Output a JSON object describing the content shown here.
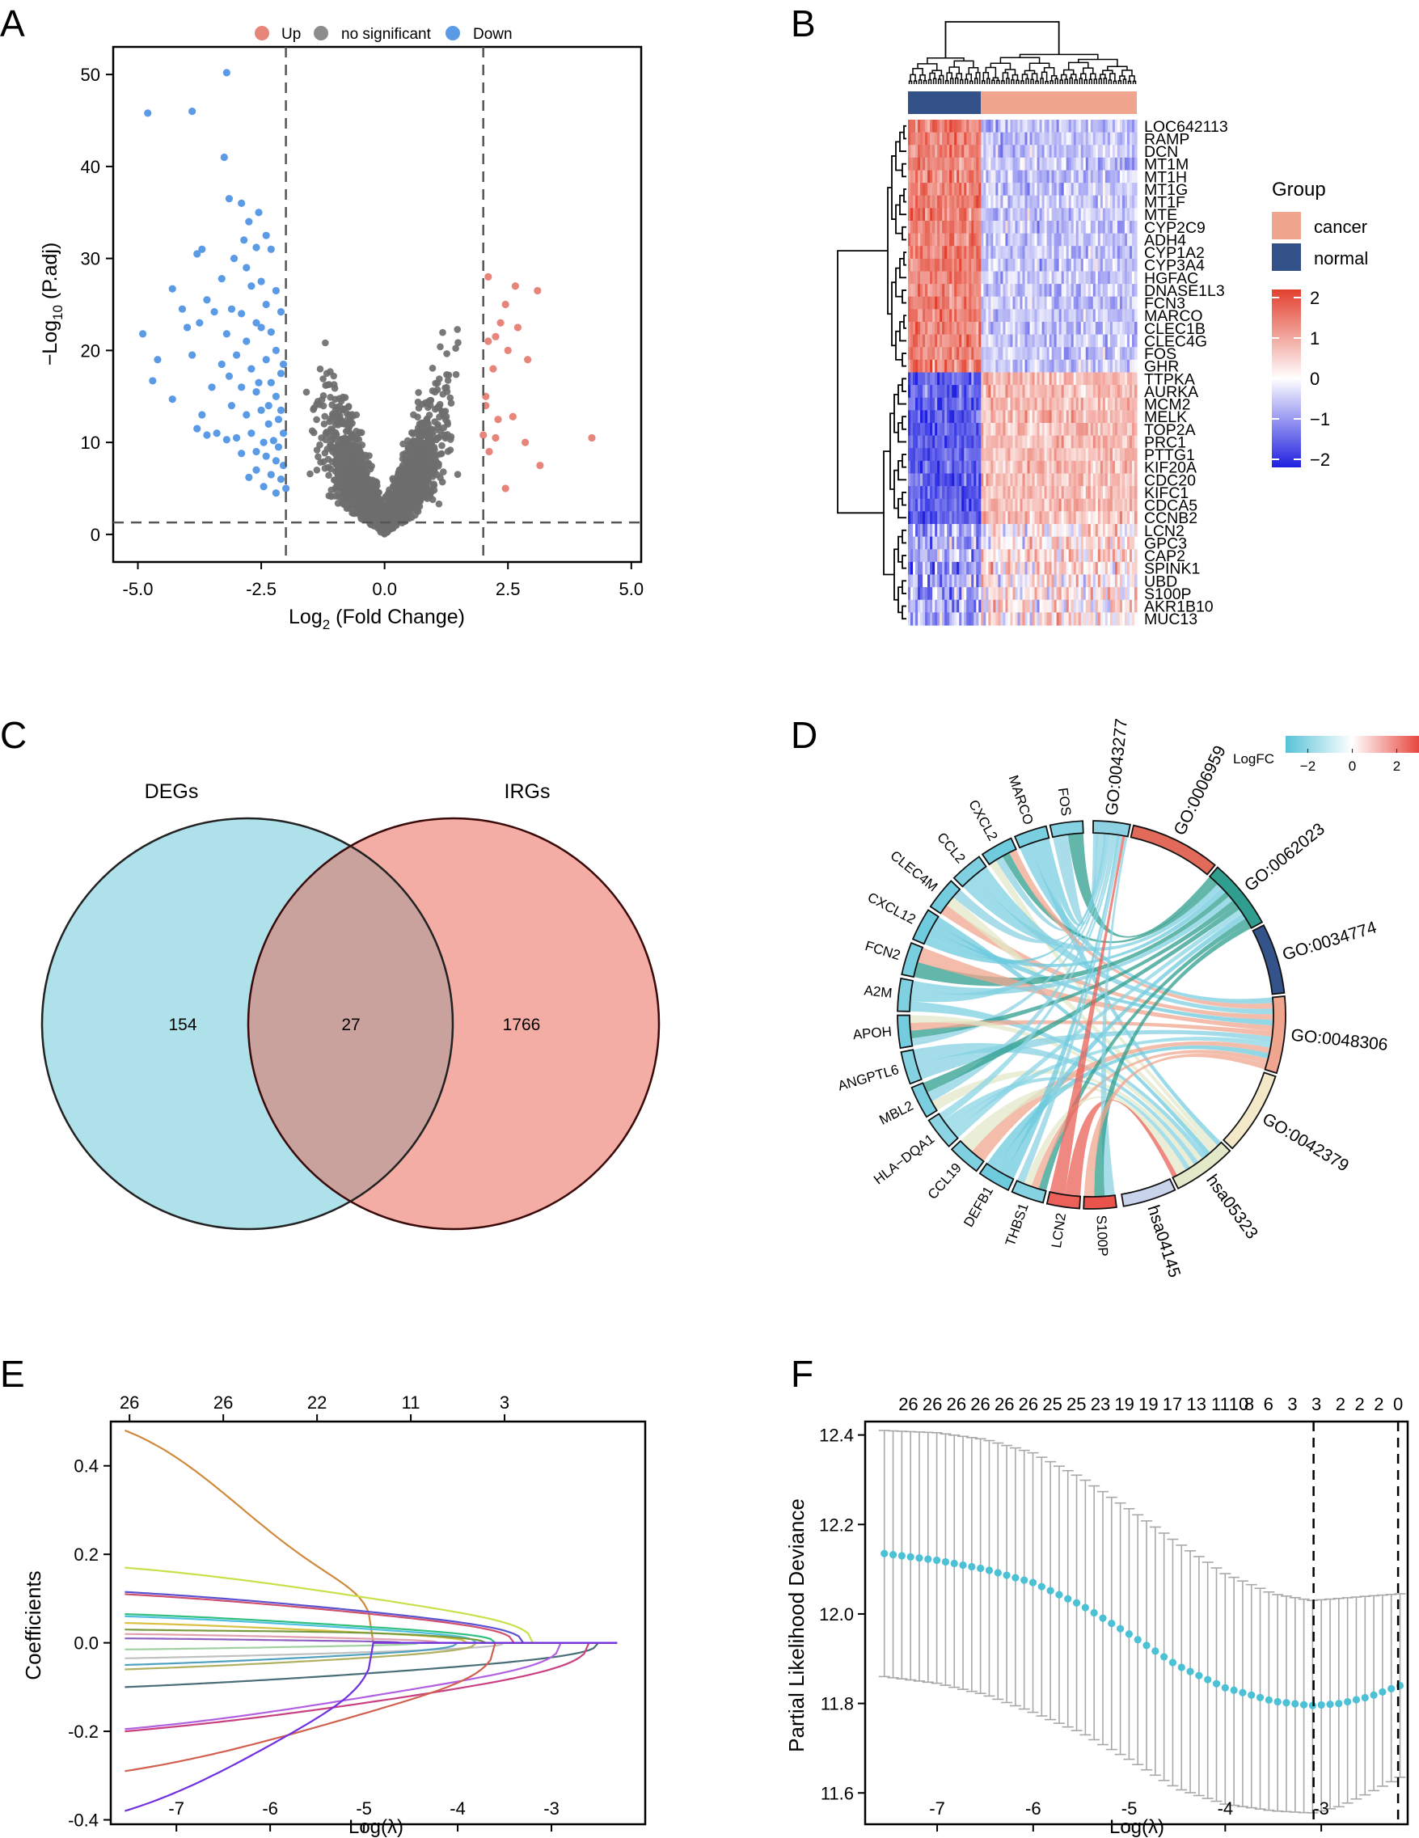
{
  "panel_letters": [
    "A",
    "B",
    "C",
    "D",
    "E",
    "F"
  ],
  "colors": {
    "up": "#e8857b",
    "nonsig": "#8c8c8c",
    "nonsig_dark": "#6e6e6e",
    "down": "#5b9be6",
    "cancer": "#f0a58e",
    "normal": "#34528a",
    "heat_high": "#e2402e",
    "heat_mid": "#ffffff",
    "heat_low": "#2020e0",
    "venn_left": "#aee1ea",
    "venn_right": "#f4ada4",
    "venn_overlap": "#c9a19d",
    "chord_low": "#58c2d8",
    "chord_high": "#e8473e",
    "lasso_cv": "#4cc0d4"
  },
  "chart_data": [
    {
      "panel": "A",
      "type": "scatter",
      "title": "",
      "legend": [
        "Up",
        "no significant",
        "Down"
      ],
      "legend_position": "top",
      "xlabel_parts": [
        "Log",
        "2",
        " (Fold Change)"
      ],
      "ylabel_parts": [
        "−Log",
        "10",
        " (P.adj)"
      ],
      "xlim": [
        -5.5,
        5.2
      ],
      "ylim": [
        -3,
        53
      ],
      "xticks": [
        "-5.0",
        "-2.5",
        "0.0",
        "2.5",
        "5.0"
      ],
      "xtick_values": [
        -5,
        -2.5,
        0,
        2.5,
        5
      ],
      "yticks": [
        "0",
        "10",
        "20",
        "30",
        "40",
        "50"
      ],
      "ytick_values": [
        0,
        10,
        20,
        30,
        40,
        50
      ],
      "thresholds": {
        "logfc": 2,
        "neglog_padj": 1.3
      },
      "up_points": [
        [
          2.1,
          28
        ],
        [
          2.45,
          25
        ],
        [
          2.65,
          27
        ],
        [
          2.35,
          23
        ],
        [
          2.5,
          20
        ],
        [
          2.7,
          22.5
        ],
        [
          3.1,
          26.5
        ],
        [
          2.9,
          19
        ],
        [
          2.1,
          21
        ],
        [
          2.2,
          18
        ],
        [
          2.05,
          15
        ],
        [
          2.05,
          14
        ],
        [
          2.3,
          12.5
        ],
        [
          2.25,
          10.5
        ],
        [
          2.85,
          10
        ],
        [
          3.15,
          7.5
        ],
        [
          4.2,
          10.5
        ],
        [
          2.45,
          5
        ],
        [
          2.12,
          9
        ],
        [
          2.0,
          10.8
        ],
        [
          2.25,
          21.5
        ],
        [
          2.6,
          12.8
        ]
      ],
      "down_points": [
        [
          -3.2,
          50.2
        ],
        [
          -4.8,
          45.8
        ],
        [
          -3.9,
          46
        ],
        [
          -3.25,
          41
        ],
        [
          -3.15,
          36.5
        ],
        [
          -2.9,
          36
        ],
        [
          -2.55,
          35
        ],
        [
          -2.75,
          34
        ],
        [
          -2.85,
          32
        ],
        [
          -2.4,
          32.5
        ],
        [
          -3.7,
          31
        ],
        [
          -3.8,
          30.5
        ],
        [
          -2.6,
          31.2
        ],
        [
          -2.8,
          29
        ],
        [
          -3.05,
          30
        ],
        [
          -2.3,
          31
        ],
        [
          -2.7,
          27
        ],
        [
          -3.3,
          27.8
        ],
        [
          -2.5,
          27.5
        ],
        [
          -2.2,
          26.5
        ],
        [
          -4.3,
          26.7
        ],
        [
          -3.6,
          25.5
        ],
        [
          -3.1,
          24.5
        ],
        [
          -2.9,
          24
        ],
        [
          -2.4,
          25
        ],
        [
          -2.1,
          24.2
        ],
        [
          -4.1,
          24.5
        ],
        [
          -3.45,
          24.2
        ],
        [
          -3.75,
          23
        ],
        [
          -2.6,
          23
        ],
        [
          -2.3,
          22
        ],
        [
          -4.0,
          22.5
        ],
        [
          -3.2,
          21.8
        ],
        [
          -2.8,
          21
        ],
        [
          -2.5,
          22.5
        ],
        [
          -2.2,
          20
        ],
        [
          -4.9,
          21.8
        ],
        [
          -4.6,
          19
        ],
        [
          -3.9,
          19.5
        ],
        [
          -3.3,
          18.5
        ],
        [
          -3.0,
          19.5
        ],
        [
          -2.7,
          18
        ],
        [
          -2.4,
          19
        ],
        [
          -2.1,
          17.5
        ],
        [
          -2.3,
          16.5
        ],
        [
          -3.5,
          16
        ],
        [
          -2.9,
          16
        ],
        [
          -2.6,
          15.5
        ],
        [
          -2.2,
          15
        ],
        [
          -4.7,
          16.7
        ],
        [
          -4.3,
          14.7
        ],
        [
          -3.7,
          13
        ],
        [
          -3.1,
          14
        ],
        [
          -2.8,
          13
        ],
        [
          -2.5,
          13.5
        ],
        [
          -2.35,
          12
        ],
        [
          -2.15,
          12.5
        ],
        [
          -3.4,
          11
        ],
        [
          -3.0,
          10.5
        ],
        [
          -2.7,
          11
        ],
        [
          -2.45,
          10
        ],
        [
          -2.25,
          10.2
        ],
        [
          -2.05,
          11
        ],
        [
          -3.6,
          10.8
        ],
        [
          -3.2,
          10.3
        ],
        [
          -2.6,
          9
        ],
        [
          -2.4,
          8.5
        ],
        [
          -2.2,
          8
        ],
        [
          -2.05,
          7.5
        ],
        [
          -3.8,
          11.5
        ],
        [
          -2.9,
          8.8
        ],
        [
          -2.6,
          7
        ],
        [
          -2.3,
          6.5
        ],
        [
          -2.1,
          6
        ],
        [
          -2.0,
          5
        ],
        [
          -2.2,
          4.5
        ],
        [
          -2.45,
          5.2
        ],
        [
          -2.75,
          6.2
        ],
        [
          -2.1,
          13.5
        ],
        [
          -2.55,
          16.5
        ],
        [
          -3.15,
          17.2
        ],
        [
          -2.05,
          18.5
        ],
        [
          -2.35,
          14
        ],
        [
          -2.15,
          9.5
        ]
      ]
    },
    {
      "panel": "B",
      "type": "heatmap",
      "genes": [
        "LOC642113",
        "RAMP",
        "DCN",
        "MT1M",
        "MT1H",
        "MT1G",
        "MT1F",
        "MTE",
        "CYP2C9",
        "ADH4",
        "CYP1A2",
        "CYP3A4",
        "HGFAC",
        "DNASE1L3",
        "FCN3",
        "MARCO",
        "CLEC1B",
        "CLEC4G",
        "FOS",
        "GHR",
        "TTPKA",
        "AURKA",
        "MCM2",
        "MELK",
        "TOP2A",
        "PRC1",
        "PTTG1",
        "KIF20A",
        "CDC20",
        "KIFC1",
        "CDCA5",
        "CCNB2",
        "LCN2",
        "GPC3",
        "CAP2",
        "SPINK1",
        "UBD",
        "S100P",
        "AKR1B10",
        "MUC13"
      ],
      "legend_title": "Group",
      "groups": [
        "cancer",
        "normal"
      ],
      "colorbar_ticks": [
        "2",
        "1",
        "0",
        "−1",
        "−2"
      ],
      "colorbar_values": [
        2,
        1,
        0,
        -1,
        -2
      ]
    },
    {
      "panel": "C",
      "type": "venn",
      "sets": [
        "DEGs",
        "IRGs"
      ],
      "counts": {
        "left_only": "154",
        "overlap": "27",
        "right_only": "1766"
      }
    },
    {
      "panel": "D",
      "type": "chord",
      "legend_title": "LogFC",
      "legend_ticks": [
        "−2",
        "0",
        "2"
      ],
      "legend_values": [
        -2,
        0,
        2
      ],
      "genes": [
        "FOS",
        "MARCO",
        "CXCL2",
        "CCL2",
        "CLEC4M",
        "CXCL12",
        "FCN2",
        "A2M",
        "APOH",
        "ANGPTL6",
        "MBL2",
        "HLA−DQA1",
        "CCL19",
        "DEFB1",
        "THBS1",
        "LCN2",
        "S100P"
      ],
      "gene_logfc": [
        -2.2,
        -2.4,
        -2.6,
        -2.3,
        -2.5,
        -2.6,
        -2.4,
        -2.3,
        -2.5,
        -2.2,
        -2.4,
        -2.1,
        -2.3,
        -2.6,
        -2.2,
        2.6,
        2.8
      ],
      "terms": [
        "GO:0043277",
        "GO:0006959",
        "GO:0062023",
        "GO:0034774",
        "GO:0048306",
        "GO:0042379",
        "hsa05323",
        "hsa04145"
      ],
      "term_colors": [
        "#8ed1e3",
        "#e26a5a",
        "#2f9e8e",
        "#34538a",
        "#f0a58e",
        "#f3e9c8",
        "#e3e8c8",
        "#c9d3ec"
      ]
    },
    {
      "panel": "E",
      "type": "line",
      "xlabel": "Log(λ)",
      "ylabel": "Coefficients",
      "xlim": [
        -7.7,
        -2.0
      ],
      "ylim": [
        -0.41,
        0.5
      ],
      "xticks": [
        "-7",
        "-6",
        "-5",
        "-4",
        "-3"
      ],
      "xtick_values": [
        -7,
        -6,
        -5,
        -4,
        -3
      ],
      "yticks": [
        "0.4",
        "0.2",
        "0.0",
        "-0.2",
        "-0.4"
      ],
      "ytick_values": [
        0.4,
        0.2,
        0.0,
        -0.2,
        -0.4
      ],
      "top_ticks": [
        "26",
        "26",
        "22",
        "11",
        "3"
      ],
      "top_tick_values": [
        -7.5,
        -6.5,
        -5.5,
        -4.5,
        -3.5
      ],
      "lambda_end": -2.3,
      "series": [
        {
          "color": "#d08a3c",
          "start": 0.48,
          "mid": 0.1,
          "zero_at": -4.9
        },
        {
          "color": "#c8e04a",
          "start": 0.17,
          "mid": 0.11,
          "zero_at": -3.2
        },
        {
          "color": "#5a52d0",
          "start": 0.115,
          "mid": 0.09,
          "zero_at": -3.3
        },
        {
          "color": "#d05070",
          "start": 0.11,
          "mid": 0.085,
          "zero_at": -3.4
        },
        {
          "color": "#2fbf7f",
          "start": 0.065,
          "mid": 0.045,
          "zero_at": -3.6
        },
        {
          "color": "#4ec0e0",
          "start": 0.06,
          "mid": 0.04,
          "zero_at": -3.8
        },
        {
          "color": "#d8c040",
          "start": 0.045,
          "mid": 0.03,
          "zero_at": -3.9
        },
        {
          "color": "#7a9a40",
          "start": 0.03,
          "mid": 0.05,
          "zero_at": -3.7
        },
        {
          "color": "#e0a0b0",
          "start": 0.02,
          "mid": 0.015,
          "zero_at": -4.2
        },
        {
          "color": "#9060c0",
          "start": 0.01,
          "mid": 0.005,
          "zero_at": -4.6
        },
        {
          "color": "#a0d0a0",
          "start": -0.015,
          "mid": -0.01,
          "zero_at": -4.4
        },
        {
          "color": "#c0c0c0",
          "start": -0.035,
          "mid": -0.03,
          "zero_at": -3.5
        },
        {
          "color": "#50a0c0",
          "start": -0.05,
          "mid": -0.04,
          "zero_at": -4.0
        },
        {
          "color": "#b0b060",
          "start": -0.06,
          "mid": -0.05,
          "zero_at": -3.8
        },
        {
          "color": "#4a6e78",
          "start": -0.1,
          "mid": -0.08,
          "zero_at": -2.5
        },
        {
          "color": "#c84080",
          "start": -0.2,
          "mid": -0.15,
          "zero_at": -2.6
        },
        {
          "color": "#b060e0",
          "start": -0.195,
          "mid": -0.12,
          "zero_at": -2.9
        },
        {
          "color": "#d06050",
          "start": -0.29,
          "mid": -0.18,
          "zero_at": -3.6
        },
        {
          "color": "#7030e0",
          "start": -0.38,
          "mid": -0.25,
          "zero_at": -4.9
        }
      ]
    },
    {
      "panel": "F",
      "type": "line",
      "xlabel": "Log(λ)",
      "ylabel": "Partial Likelihood Deviance",
      "xlim": [
        -7.75,
        -2.1
      ],
      "ylim": [
        11.53,
        12.43
      ],
      "xticks": [
        "-7",
        "-6",
        "-5",
        "-4",
        "-3"
      ],
      "xtick_values": [
        -7,
        -6,
        -5,
        -4,
        -3
      ],
      "yticks": [
        "12.4",
        "12.2",
        "12.0",
        "11.8",
        "11.6"
      ],
      "ytick_values": [
        12.4,
        12.2,
        12.0,
        11.8,
        11.6
      ],
      "top_labels": [
        "26",
        "26",
        "26",
        "26",
        "26",
        "26",
        "25",
        "25",
        "23",
        "19",
        "19",
        "17",
        "13",
        "11",
        "10",
        "8",
        "6",
        "3",
        "3",
        "2",
        "2",
        "2",
        "0"
      ],
      "top_label_values": [
        -7.3,
        -7.05,
        -6.8,
        -6.55,
        -6.3,
        -6.05,
        -5.8,
        -5.55,
        -5.3,
        -5.05,
        -4.8,
        -4.55,
        -4.3,
        -4.05,
        -3.86,
        -3.75,
        -3.55,
        -3.3,
        -3.05,
        -2.8,
        -2.6,
        -2.4,
        -2.2
      ],
      "vlines": [
        -3.08,
        -2.2
      ],
      "n_points": 60,
      "lambda_start": -7.55,
      "lambda_end": -2.18,
      "mean_curve": [
        [
          -7.55,
          12.135
        ],
        [
          -7.0,
          12.12
        ],
        [
          -6.5,
          12.1
        ],
        [
          -6.0,
          12.07
        ],
        [
          -5.5,
          12.02
        ],
        [
          -5.0,
          11.955
        ],
        [
          -4.5,
          11.885
        ],
        [
          -4.0,
          11.835
        ],
        [
          -3.5,
          11.805
        ],
        [
          -3.1,
          11.795
        ],
        [
          -2.8,
          11.8
        ],
        [
          -2.5,
          11.815
        ],
        [
          -2.18,
          11.84
        ]
      ],
      "upper_curve": [
        [
          -7.55,
          12.41
        ],
        [
          -7.0,
          12.405
        ],
        [
          -6.5,
          12.39
        ],
        [
          -6.0,
          12.36
        ],
        [
          -5.5,
          12.305
        ],
        [
          -5.0,
          12.235
        ],
        [
          -4.5,
          12.16
        ],
        [
          -4.0,
          12.09
        ],
        [
          -3.5,
          12.045
        ],
        [
          -3.1,
          12.03
        ],
        [
          -2.8,
          12.035
        ],
        [
          -2.5,
          12.04
        ],
        [
          -2.18,
          12.045
        ]
      ],
      "lower_curve": [
        [
          -7.55,
          11.86
        ],
        [
          -7.0,
          11.845
        ],
        [
          -6.5,
          11.82
        ],
        [
          -6.0,
          11.78
        ],
        [
          -5.5,
          11.735
        ],
        [
          -5.0,
          11.675
        ],
        [
          -4.5,
          11.61
        ],
        [
          -4.0,
          11.575
        ],
        [
          -3.5,
          11.56
        ],
        [
          -3.1,
          11.555
        ],
        [
          -2.8,
          11.57
        ],
        [
          -2.5,
          11.6
        ],
        [
          -2.18,
          11.635
        ]
      ]
    }
  ]
}
